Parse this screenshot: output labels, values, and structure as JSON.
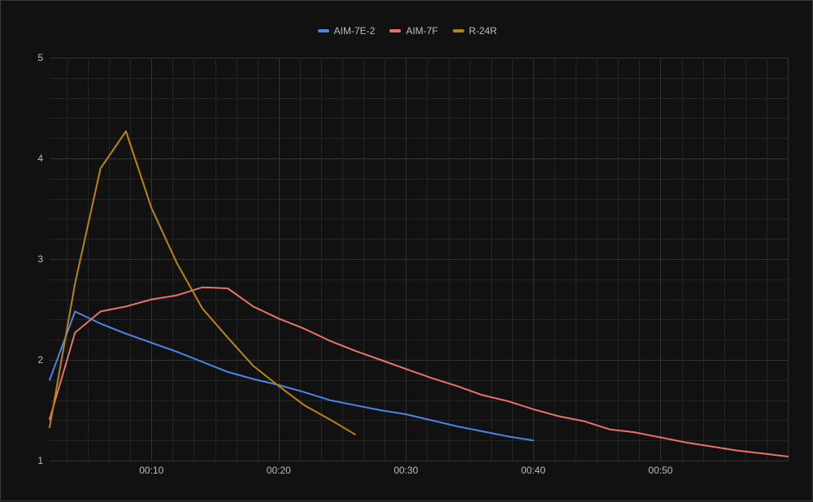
{
  "chart_data": {
    "type": "line",
    "title": "",
    "xlabel": "",
    "ylabel": "",
    "legend_position": "top",
    "grid": true,
    "xlim_seconds": [
      2,
      60
    ],
    "ylim": [
      1,
      5
    ],
    "y_ticks": [
      "1",
      "2",
      "3",
      "4",
      "5"
    ],
    "x_ticks": [
      {
        "t": 10,
        "label": "00:10"
      },
      {
        "t": 20,
        "label": "00:20"
      },
      {
        "t": 30,
        "label": "00:30"
      },
      {
        "t": 40,
        "label": "00:40"
      },
      {
        "t": 50,
        "label": "00:50"
      }
    ],
    "series": [
      {
        "name": "AIM-7E-2",
        "color": "#4a86e8",
        "x": [
          2,
          4,
          6,
          8,
          10,
          12,
          14,
          16,
          18,
          20,
          22,
          24,
          26,
          28,
          30,
          32,
          34,
          36,
          38,
          40
        ],
        "values": [
          1.8,
          2.48,
          2.36,
          2.26,
          2.17,
          2.08,
          1.98,
          1.88,
          1.81,
          1.75,
          1.68,
          1.6,
          1.55,
          1.5,
          1.46,
          1.4,
          1.34,
          1.29,
          1.24,
          1.2
        ]
      },
      {
        "name": "AIM-7F",
        "color": "#e8736a",
        "x": [
          2,
          4,
          6,
          8,
          10,
          12,
          14,
          16,
          18,
          20,
          22,
          24,
          26,
          28,
          30,
          32,
          34,
          36,
          38,
          40,
          42,
          44,
          46,
          48,
          50,
          52,
          54,
          56,
          58,
          60
        ],
        "values": [
          1.41,
          2.27,
          2.48,
          2.53,
          2.6,
          2.64,
          2.72,
          2.71,
          2.53,
          2.41,
          2.31,
          2.19,
          2.09,
          2.0,
          1.91,
          1.82,
          1.74,
          1.65,
          1.59,
          1.51,
          1.44,
          1.39,
          1.31,
          1.28,
          1.23,
          1.18,
          1.14,
          1.1,
          1.07,
          1.04
        ]
      },
      {
        "name": "R-24R",
        "color": "#b8860b",
        "x": [
          2,
          4,
          6,
          8,
          10,
          12,
          14,
          16,
          18,
          20,
          22,
          24,
          26
        ],
        "values": [
          1.33,
          2.76,
          3.9,
          4.27,
          3.51,
          2.96,
          2.51,
          2.22,
          1.94,
          1.74,
          1.55,
          1.41,
          1.26
        ]
      }
    ]
  },
  "legend": {
    "items": [
      {
        "label": "AIM-7E-2",
        "color": "#4a86e8"
      },
      {
        "label": "AIM-7F",
        "color": "#e8736a"
      },
      {
        "label": "R-24R",
        "color": "#b8860b"
      }
    ]
  },
  "colors": {
    "background": "#111111",
    "grid_major": "#333333",
    "grid_minor": "#242424",
    "tick_text": "#bdbdbd"
  }
}
